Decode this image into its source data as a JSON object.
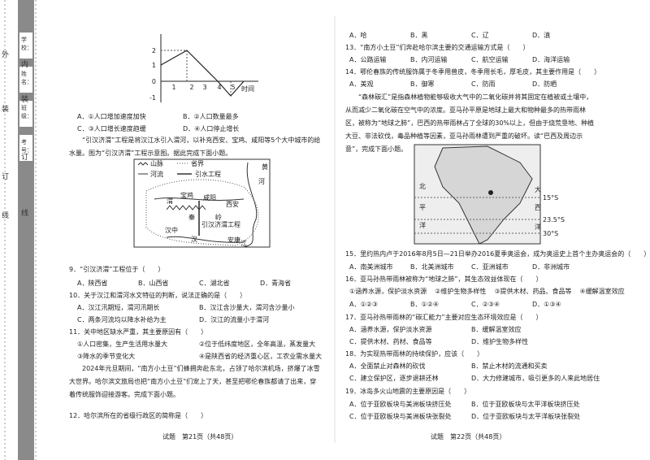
{
  "binding": {
    "outer": [
      "外",
      "装",
      "订",
      "线"
    ],
    "inner": [
      "内",
      "装",
      "订",
      "线"
    ],
    "fields": [
      "学校：",
      "姓名：",
      "班级：",
      "考号："
    ]
  },
  "left": {
    "figure": {
      "yticks": [
        "2",
        "1",
        "0",
        "-1"
      ],
      "xticks": [
        "1",
        "2",
        "3",
        "4",
        "5"
      ],
      "x_label": "时间"
    },
    "q8_options": [
      "A．①人口增加速度加快",
      "B．②人口数量最多",
      "C．③人口增长速度趋缓",
      "D．④人口停止增长"
    ],
    "passage1": "“引汉济渭”工程是将汉江水引入渭河，以补充西安、宝鸡、咸阳等5个大中城市的给水量。图为“引汉济渭”工程示意图。据此完成下面小题。",
    "map1": {
      "legend": [
        "山脉",
        "省界",
        "河流",
        "引水工程"
      ],
      "labels": [
        "黄",
        "河",
        "宝鸡",
        "咸阳",
        "渭",
        "西安",
        "秦",
        "岭",
        "引汉济渭工程",
        "汉中",
        "汉",
        "安康",
        "江"
      ]
    },
    "q9": {
      "stem": "9．“引汉济渭”工程位于（　　）",
      "options": [
        "A．陕西省",
        "B．山西省",
        "C．湖北省",
        "D．青海省"
      ]
    },
    "q10": {
      "stem": "10．关于汉江和渭河水文特征的判断，说法正确的是（　　）",
      "options": [
        "A．汉江汛期短，渭河汛期长",
        "B．汉江含沙量大，渭河含沙量小",
        "C．两条河流均以降水补给为主",
        "D．汉江的流量小于渭河"
      ]
    },
    "q11": {
      "stem": "11．关中地区缺水严重，其主要原因有（　　）",
      "items": [
        "①人口密集，生产生活用水量大",
        "②位于低纬度地区，全年高温，蒸发量大",
        "③降水的季节变化大",
        "④是陕西省的经济重心区，工农业需水量大"
      ]
    },
    "passage2": "2024年元旦期间，“南方小土豆”们蜂拥奔赴东北，占领了哈尔滨机场，挤爆了冰雪大世界。哈尔滨文旅局也把“南方小土豆”们宠上了天，甚至把鄂伦春族都请了出来，穿着传统服饰迎接游客。完成下面小题。",
    "q12": {
      "stem": "12．哈尔滨所在的省级行政区的简称是（　　）"
    },
    "footer": "试题　第21页（共48页）"
  },
  "right": {
    "q12_options": [
      "A．哈",
      "B．黑",
      "C．辽",
      "D．滇"
    ],
    "q13": {
      "stem": "13．“南方小土豆”们奔赴哈尔滨主要的交通运输方式是（　　）",
      "options": [
        "A．公路运输",
        "B．内河运输",
        "C．航空运输",
        "D．海洋运输"
      ]
    },
    "q14": {
      "stem": "14．鄂伦春族的传统服饰属于冬季用兽皮，冬季用长毛，厚毛皮，其主要作用是（　　）",
      "options": [
        "A．美观",
        "B．御寒",
        "C．防雨",
        "D．防晒"
      ]
    },
    "passage3": "“森林碳汇”是指森林植物能够吸收大气中的二氧化碳并将其固定在植被或土壤中，从而减少二氧化碳在空气中的浓度。亚马孙平原是地球上最大和物种最多的热带雨林区，被称为“地球之肺”，巴西的热带雨林占了全球的30%以上，但由于烧荒垦地、种植大豆、非法砍伐，毒品种植等因素，亚马孙雨林遭到严重的破坏。读“巴西及周边示意”，完成下面小题。",
    "map2": {
      "labels": [
        "北",
        "平",
        "洋",
        "大",
        "西",
        "洋",
        "15°S",
        "23.5°S",
        "30°S"
      ]
    },
    "q15": {
      "stem": "15．里约热内卢于2016年8月5日—21日举办2016夏季奥运会，成为奥运史上首个主办奥运会的（　　）",
      "options": [
        "A．南美洲城市",
        "B．北美洲城市",
        "C．亚洲城市",
        "D．非洲城市"
      ]
    },
    "q16": {
      "stem": "16．亚马孙热带雨林被称为“地球之肺”，其生态效益体现在（　　）",
      "items": [
        "①涵养水源，保护淡水资源",
        "②维护生物多样性",
        "③提供木材、药品、食品等",
        "④缓解温室效应"
      ],
      "options": [
        "A．①②③",
        "B．①②④",
        "C．②③④",
        "D．①③④"
      ]
    },
    "q17": {
      "stem": "17．亚马孙热带雨林的“碳汇能力”主要对应生态环境效应是（　　）",
      "options": [
        "A．涵养水源，保护淡水资源",
        "B．缓解温室效应",
        "C．提供木材、药材、食品等",
        "D．维护生物多样性"
      ]
    },
    "q18": {
      "stem": "18．为实现热带雨林的持续保护，应该（　　）",
      "options": [
        "A．全面禁止对森林的砍伐",
        "B．禁止木材的流通和买卖",
        "C．建立保护区，逐步退耕还林",
        "D．大力修建城市，吸引更多的人来此地居住"
      ]
    },
    "q19": {
      "stem": "19．冰岛多火山地震的主要原因是（　　）",
      "options": [
        "A．位于亚欧板块与美洲板块挤压处",
        "B．位于亚欧板块与太平洋板块挤压处",
        "C．位于亚欧板块与美洲板块张裂处",
        "D．位于亚欧板块与太平洋板块张裂处"
      ]
    },
    "footer": "试题　第22页（共48页）"
  }
}
